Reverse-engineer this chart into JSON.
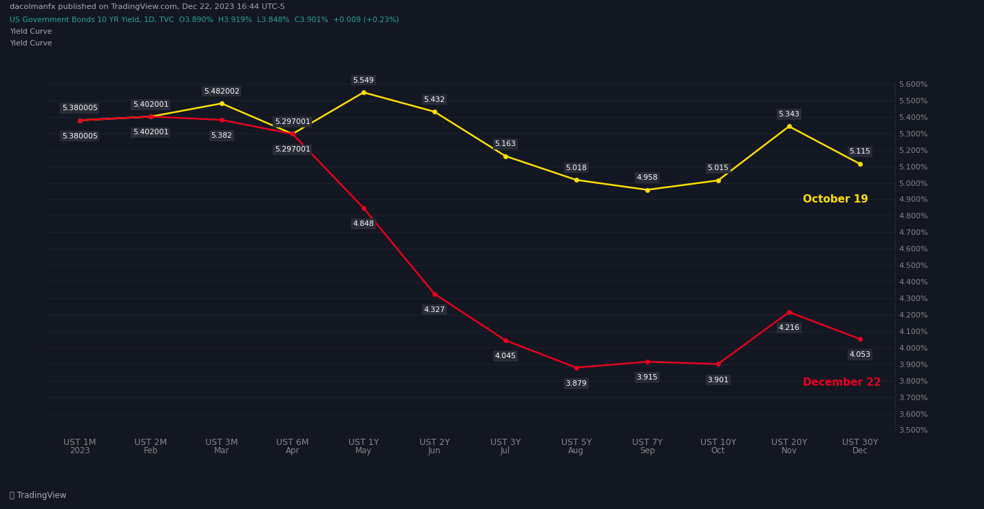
{
  "background_color": "#131722",
  "header_text": "dacolmanfx published on TradingView.com, Dec 22, 2023 16:44 UTC-5",
  "info_line": "US Government Bonds 10 YR Yield, 1D, TVC  O3.890%  H3.919%  L3.848%  C3.901%  +0.009 (+0.23%)",
  "label1": "Yield Curve",
  "label2": "Yield Curve",
  "x_labels": [
    "UST 1M",
    "UST 2M",
    "UST 3M",
    "UST 6M",
    "UST 1Y",
    "UST 2Y",
    "UST 3Y",
    "UST 5Y",
    "UST 7Y",
    "UST 10Y",
    "UST 20Y",
    "UST 30Y"
  ],
  "x_positions": [
    0,
    1,
    2,
    3,
    4,
    5,
    6,
    7,
    8,
    9,
    10,
    11
  ],
  "time_labels": [
    "2023",
    "Feb",
    "Mar",
    "Apr",
    "May",
    "Jun",
    "Jul",
    "Aug",
    "Sep",
    "Oct",
    "Nov",
    "Dec"
  ],
  "yellow_values": [
    5.380005,
    5.402001,
    5.482002,
    5.297001,
    5.549,
    5.432,
    5.163,
    5.018,
    4.958,
    5.015,
    5.343,
    5.115
  ],
  "yellow_labels": [
    "5.380005",
    "5.402001",
    "5.482002",
    "5.297001",
    "5.549",
    "5.432",
    "5.163",
    "5.018",
    "4.958",
    "5.015",
    "5.343",
    "5.115"
  ],
  "red_values": [
    5.380005,
    5.402001,
    5.382,
    5.297001,
    4.848,
    4.327,
    4.045,
    3.879,
    3.915,
    3.901,
    4.216,
    4.053
  ],
  "red_labels": [
    "5.380005",
    "5.402001",
    "5.382",
    "5.297001",
    "4.848",
    "4.327",
    "4.045",
    "3.879",
    "3.915",
    "3.901",
    "4.216",
    "4.053"
  ],
  "yellow_color": "#FFE000",
  "red_color": "#E8001E",
  "label_bg": "#2A2E39",
  "label_text_color": "#FFFFFF",
  "annotation_yellow": "October 19",
  "annotation_red": "December 22",
  "annotation_yellow_color": "#FFE000",
  "annotation_red_color": "#E8001E",
  "ytick_min": 3.5,
  "ytick_max": 5.6,
  "ytick_step": 0.1,
  "footer_text": "⧈ TradingView",
  "axis_color": "#2A2E39",
  "tick_color": "#888888",
  "grid_color": "#1E2330",
  "info_color": "#26A69A",
  "header_color": "#AAAAAA"
}
